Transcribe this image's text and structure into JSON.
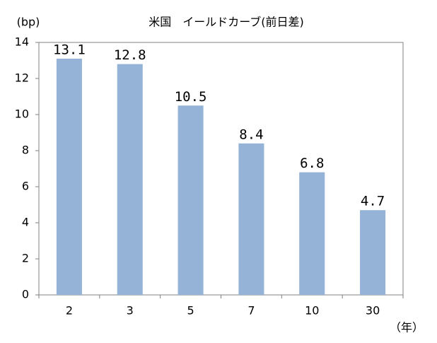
{
  "chart_data": {
    "type": "bar",
    "title": "米国　イールドカーブ(前日差)",
    "y_label": "(bp)",
    "x_label": "（年）",
    "categories": [
      "2",
      "3",
      "5",
      "7",
      "10",
      "30"
    ],
    "values": [
      13.1,
      12.8,
      10.5,
      8.4,
      6.8,
      4.7
    ],
    "color": "#95b3d7",
    "ylim": [
      0,
      14
    ],
    "yticks": [
      0,
      2,
      4,
      6,
      8,
      10,
      12,
      14
    ],
    "grid": false
  }
}
